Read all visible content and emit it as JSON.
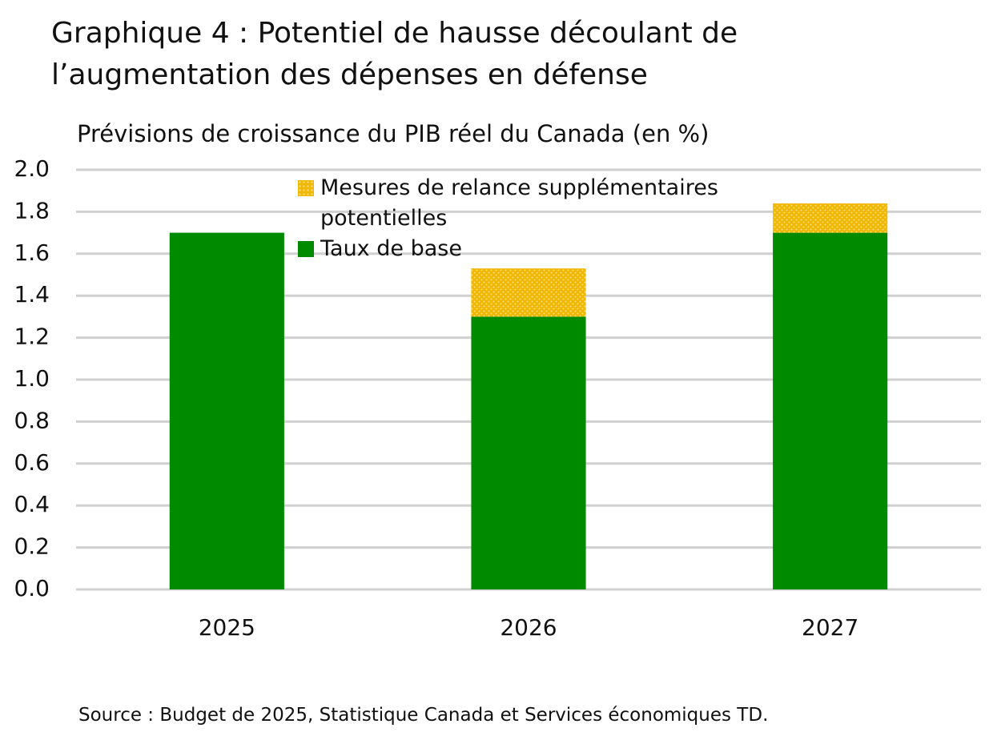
{
  "chart_data": {
    "type": "stacked_bar",
    "title": "Graphique 4 : Potentiel de hausse découlant de l’augmentation des dépenses en défense",
    "subtitle": "Prévisions de croissance du PIB réel du Canada (en %)",
    "source": "Source : Budget de 2025, Statistique Canada et Services économiques TD.",
    "categories": [
      "2025",
      "2026",
      "2027"
    ],
    "series": [
      {
        "name": "Taux de base",
        "color": "#008a00",
        "values": [
          1.7,
          1.3,
          1.7
        ]
      },
      {
        "name": "Mesures de relance supplémentaires potentielles",
        "color": "#f0b800",
        "pattern": "dots",
        "values": [
          0,
          0.23,
          0.14
        ]
      }
    ],
    "ylim": [
      0,
      2
    ],
    "yticks": [
      {
        "value": 0,
        "label": "0.0"
      },
      {
        "value": 0.2,
        "label": "0.2"
      },
      {
        "value": 0.4,
        "label": "0.4"
      },
      {
        "value": 0.6,
        "label": "0.6"
      },
      {
        "value": 0.8,
        "label": "0.8"
      },
      {
        "value": 1,
        "label": "1.0"
      },
      {
        "value": 1.2,
        "label": "1.2"
      },
      {
        "value": 1.4,
        "label": "1.4"
      },
      {
        "value": 1.6,
        "label": "1.6"
      },
      {
        "value": 1.8,
        "label": "1.8"
      },
      {
        "value": 2,
        "label": "2.0"
      }
    ],
    "grid": true
  }
}
